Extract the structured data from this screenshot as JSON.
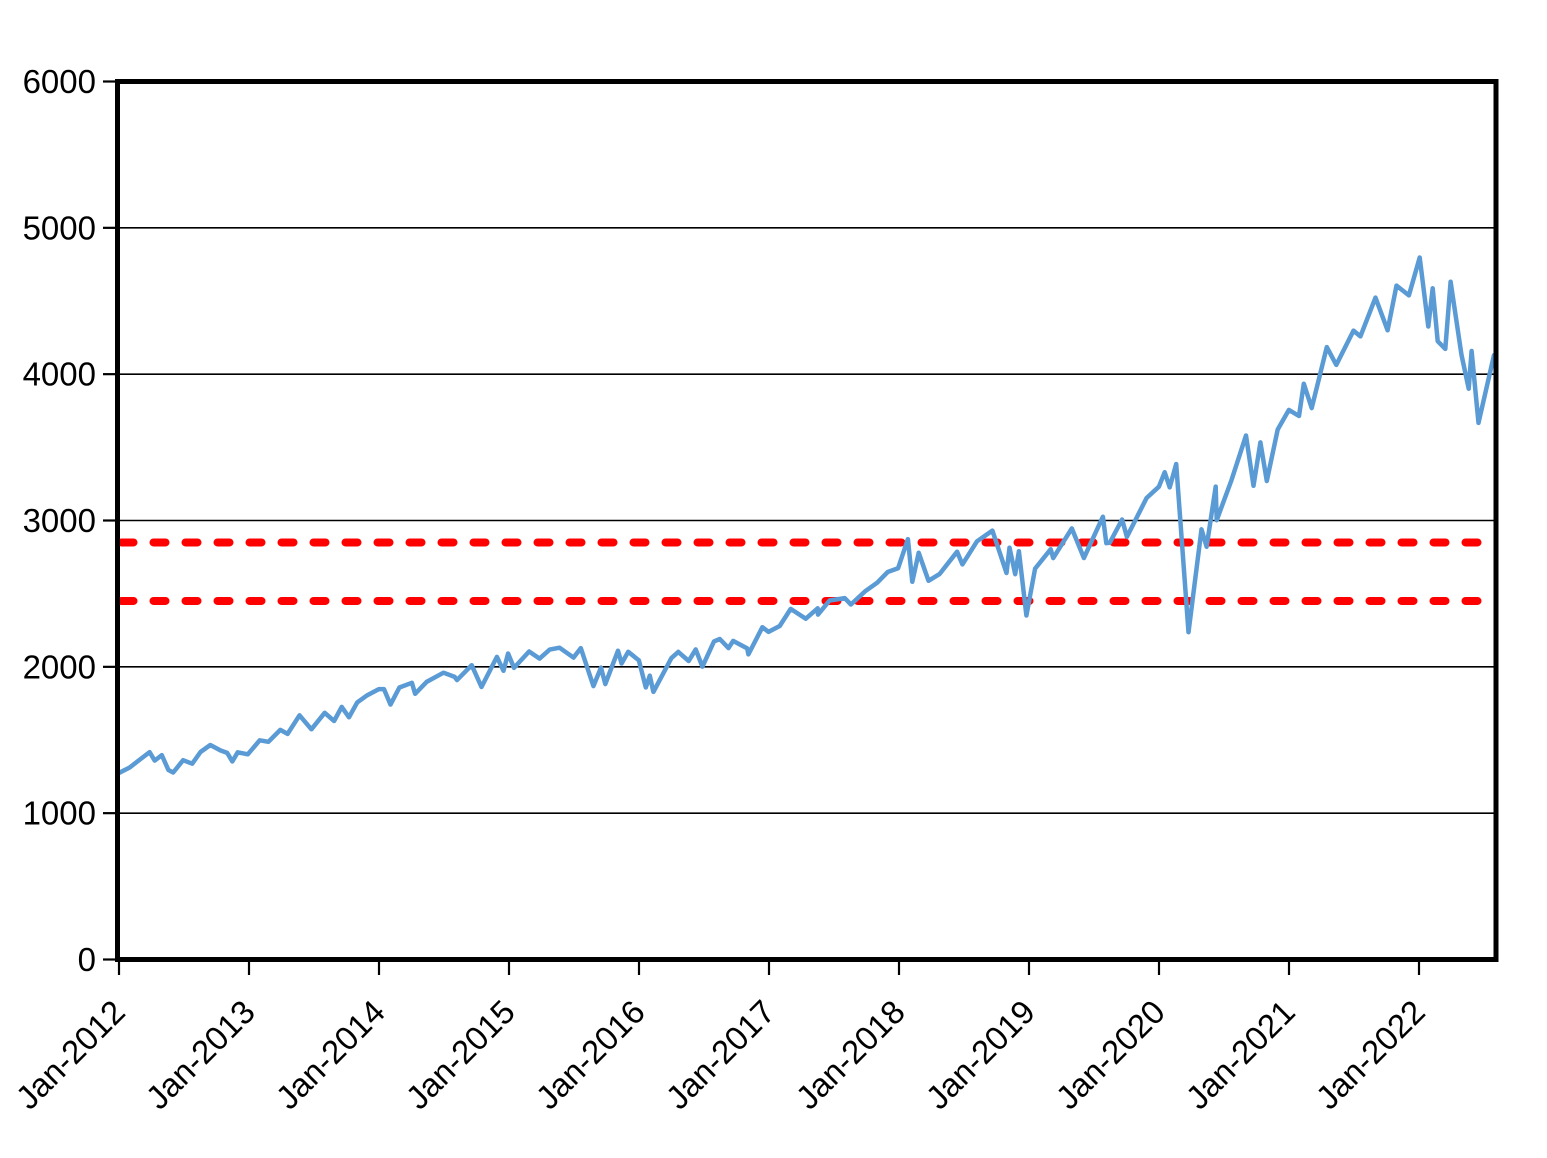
{
  "page": {
    "background_color": "#ffffff"
  },
  "chart_data": {
    "type": "line",
    "title": "",
    "xlabel": "",
    "ylabel": "",
    "grid": {
      "horizontal": true,
      "vertical": false
    },
    "legend": "none",
    "y_axis": {
      "min": 0,
      "max": 6000,
      "tick_interval": 1000,
      "ticks": [
        0,
        1000,
        2000,
        3000,
        4000,
        5000,
        6000
      ],
      "tick_labels": [
        "0",
        "1000",
        "2000",
        "3000",
        "4000",
        "5000",
        "6000"
      ]
    },
    "x_axis": {
      "start_year": 2012,
      "tick_labels": [
        "Jan-2012",
        "Jan-2013",
        "Jan-2014",
        "Jan-2015",
        "Jan-2016",
        "Jan-2017",
        "Jan-2018",
        "Jan-2019",
        "Jan-2020",
        "Jan-2021",
        "Jan-2022"
      ],
      "label_rotation_deg": -45,
      "range_end": "2022-08-01"
    },
    "reference_lines": [
      {
        "name": "upper-reference",
        "value": 2850,
        "color": "#ff0000",
        "style": "dashed"
      },
      {
        "name": "lower-reference",
        "value": 2450,
        "color": "#ff0000",
        "style": "dashed"
      }
    ],
    "series": [
      {
        "name": "index_level",
        "color": "#5b9bd5",
        "points": [
          [
            "2012-01-03",
            1277
          ],
          [
            "2012-01-31",
            1312
          ],
          [
            "2012-02-29",
            1366
          ],
          [
            "2012-03-26",
            1417
          ],
          [
            "2012-04-10",
            1359
          ],
          [
            "2012-04-30",
            1397
          ],
          [
            "2012-05-18",
            1295
          ],
          [
            "2012-06-01",
            1278
          ],
          [
            "2012-06-29",
            1362
          ],
          [
            "2012-07-24",
            1338
          ],
          [
            "2012-08-17",
            1418
          ],
          [
            "2012-09-14",
            1466
          ],
          [
            "2012-10-12",
            1429
          ],
          [
            "2012-10-31",
            1412
          ],
          [
            "2012-11-15",
            1353
          ],
          [
            "2012-11-30",
            1416
          ],
          [
            "2012-12-28",
            1402
          ],
          [
            "2013-01-31",
            1498
          ],
          [
            "2013-02-25",
            1488
          ],
          [
            "2013-03-28",
            1569
          ],
          [
            "2013-04-18",
            1542
          ],
          [
            "2013-05-21",
            1669
          ],
          [
            "2013-06-24",
            1573
          ],
          [
            "2013-07-31",
            1686
          ],
          [
            "2013-08-27",
            1630
          ],
          [
            "2013-09-18",
            1726
          ],
          [
            "2013-10-08",
            1655
          ],
          [
            "2013-10-31",
            1757
          ],
          [
            "2013-11-29",
            1806
          ],
          [
            "2013-12-31",
            1848
          ],
          [
            "2014-01-15",
            1848
          ],
          [
            "2014-02-03",
            1742
          ],
          [
            "2014-02-28",
            1859
          ],
          [
            "2014-04-02",
            1891
          ],
          [
            "2014-04-11",
            1816
          ],
          [
            "2014-05-13",
            1897
          ],
          [
            "2014-06-30",
            1960
          ],
          [
            "2014-07-31",
            1931
          ],
          [
            "2014-08-07",
            1909
          ],
          [
            "2014-09-18",
            2011
          ],
          [
            "2014-10-15",
            1862
          ],
          [
            "2014-11-28",
            2068
          ],
          [
            "2014-12-16",
            1973
          ],
          [
            "2014-12-29",
            2091
          ],
          [
            "2015-01-15",
            1993
          ],
          [
            "2015-02-27",
            2105
          ],
          [
            "2015-03-26",
            2056
          ],
          [
            "2015-04-24",
            2118
          ],
          [
            "2015-05-21",
            2131
          ],
          [
            "2015-06-30",
            2063
          ],
          [
            "2015-07-20",
            2128
          ],
          [
            "2015-08-25",
            1868
          ],
          [
            "2015-09-16",
            1995
          ],
          [
            "2015-09-28",
            1882
          ],
          [
            "2015-11-03",
            2110
          ],
          [
            "2015-11-13",
            2023
          ],
          [
            "2015-12-01",
            2103
          ],
          [
            "2015-12-31",
            2044
          ],
          [
            "2016-01-20",
            1859
          ],
          [
            "2016-02-01",
            1940
          ],
          [
            "2016-02-11",
            1829
          ],
          [
            "2016-03-31",
            2060
          ],
          [
            "2016-04-20",
            2102
          ],
          [
            "2016-05-19",
            2040
          ],
          [
            "2016-06-08",
            2119
          ],
          [
            "2016-06-27",
            2001
          ],
          [
            "2016-07-29",
            2174
          ],
          [
            "2016-08-15",
            2190
          ],
          [
            "2016-09-09",
            2128
          ],
          [
            "2016-09-22",
            2177
          ],
          [
            "2016-10-31",
            2126
          ],
          [
            "2016-11-04",
            2085
          ],
          [
            "2016-12-13",
            2271
          ],
          [
            "2016-12-30",
            2239
          ],
          [
            "2017-01-31",
            2279
          ],
          [
            "2017-03-01",
            2396
          ],
          [
            "2017-04-13",
            2329
          ],
          [
            "2017-05-16",
            2400
          ],
          [
            "2017-05-17",
            2357
          ],
          [
            "2017-06-19",
            2453
          ],
          [
            "2017-07-31",
            2470
          ],
          [
            "2017-08-18",
            2426
          ],
          [
            "2017-09-29",
            2519
          ],
          [
            "2017-10-31",
            2575
          ],
          [
            "2017-11-30",
            2648
          ],
          [
            "2017-12-29",
            2674
          ],
          [
            "2018-01-26",
            2873
          ],
          [
            "2018-02-08",
            2581
          ],
          [
            "2018-02-26",
            2780
          ],
          [
            "2018-03-23",
            2588
          ],
          [
            "2018-04-24",
            2635
          ],
          [
            "2018-06-12",
            2787
          ],
          [
            "2018-06-27",
            2700
          ],
          [
            "2018-08-07",
            2858
          ],
          [
            "2018-09-20",
            2931
          ],
          [
            "2018-10-29",
            2641
          ],
          [
            "2018-11-07",
            2814
          ],
          [
            "2018-11-23",
            2633
          ],
          [
            "2018-12-03",
            2790
          ],
          [
            "2018-12-24",
            2351
          ],
          [
            "2019-01-18",
            2671
          ],
          [
            "2019-03-01",
            2804
          ],
          [
            "2019-03-08",
            2743
          ],
          [
            "2019-04-30",
            2946
          ],
          [
            "2019-06-03",
            2744
          ],
          [
            "2019-07-26",
            3026
          ],
          [
            "2019-08-05",
            2845
          ],
          [
            "2019-08-15",
            2848
          ],
          [
            "2019-09-19",
            3007
          ],
          [
            "2019-10-02",
            2888
          ],
          [
            "2019-11-27",
            3154
          ],
          [
            "2019-12-31",
            3231
          ],
          [
            "2020-01-17",
            3330
          ],
          [
            "2020-01-31",
            3226
          ],
          [
            "2020-02-19",
            3386
          ],
          [
            "2020-03-23",
            2237
          ],
          [
            "2020-04-29",
            2940
          ],
          [
            "2020-05-13",
            2820
          ],
          [
            "2020-06-08",
            3232
          ],
          [
            "2020-06-11",
            3002
          ],
          [
            "2020-07-22",
            3276
          ],
          [
            "2020-09-02",
            3581
          ],
          [
            "2020-09-23",
            3237
          ],
          [
            "2020-10-12",
            3534
          ],
          [
            "2020-10-30",
            3270
          ],
          [
            "2020-11-30",
            3622
          ],
          [
            "2020-12-31",
            3756
          ],
          [
            "2021-01-29",
            3714
          ],
          [
            "2021-02-12",
            3935
          ],
          [
            "2021-03-04",
            3768
          ],
          [
            "2021-04-16",
            4185
          ],
          [
            "2021-05-12",
            4063
          ],
          [
            "2021-06-30",
            4298
          ],
          [
            "2021-07-19",
            4258
          ],
          [
            "2021-08-31",
            4523
          ],
          [
            "2021-10-04",
            4300
          ],
          [
            "2021-10-29",
            4605
          ],
          [
            "2021-12-03",
            4538
          ],
          [
            "2022-01-03",
            4797
          ],
          [
            "2022-01-27",
            4326
          ],
          [
            "2022-02-09",
            4587
          ],
          [
            "2022-02-23",
            4225
          ],
          [
            "2022-03-14",
            4173
          ],
          [
            "2022-03-29",
            4632
          ],
          [
            "2022-04-29",
            4132
          ],
          [
            "2022-05-19",
            3901
          ],
          [
            "2022-05-27",
            4158
          ],
          [
            "2022-06-16",
            3667
          ],
          [
            "2022-07-29",
            4130
          ]
        ]
      }
    ],
    "colors": {
      "series_line": "#5b9bd5",
      "reference_line": "#ff0000",
      "axis": "#000000",
      "gridline": "#000000",
      "background": "#ffffff"
    }
  }
}
